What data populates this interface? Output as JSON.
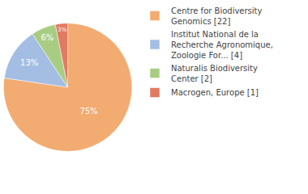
{
  "chart_data": {
    "type": "pie",
    "categories": [
      "Centre for Biodiversity Genomics [22]",
      "Institut National de la Recherche Agronomique, Zoologie For... [4]",
      "Naturalis Biodiversity Center [2]",
      "Macrogen, Europe [1]"
    ],
    "values": [
      75,
      13,
      6,
      3
    ],
    "value_labels": [
      "75%",
      "13%",
      "6%",
      "3%"
    ],
    "colors": [
      "#f2ab70",
      "#a4bde3",
      "#a8cd82",
      "#e27a62"
    ],
    "data_labels": true,
    "legend": "top right"
  }
}
